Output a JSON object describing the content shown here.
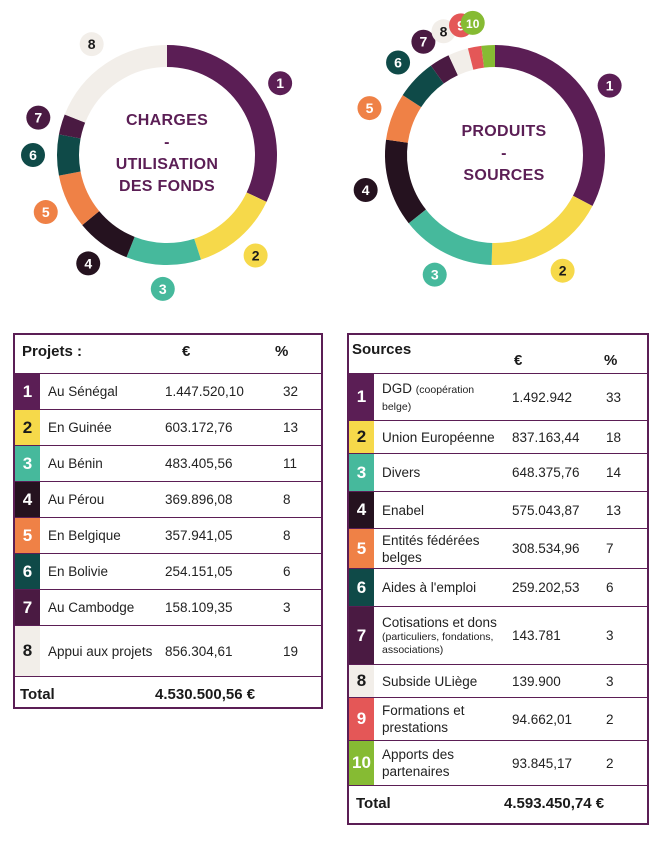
{
  "palette": {
    "1": "#5b1e55",
    "2": "#f6d94a",
    "3": "#46b99c",
    "4": "#25121f",
    "5": "#ef8146",
    "6": "#0f4a48",
    "7": "#4a1a42",
    "8": "#f2eee9",
    "9": "#e45757",
    "10": "#86bb33"
  },
  "chart_data": [
    {
      "type": "pie",
      "center_lines": [
        "CHARGES",
        "-",
        "UTILISATION",
        "DES FONDS"
      ],
      "categories": [
        "1",
        "2",
        "3",
        "4",
        "5",
        "6",
        "7",
        "8"
      ],
      "values": [
        32,
        13,
        11,
        8,
        8,
        6,
        3,
        19
      ]
    },
    {
      "type": "pie",
      "center_lines": [
        "PRODUITS",
        "-",
        "SOURCES"
      ],
      "categories": [
        "1",
        "2",
        "3",
        "4",
        "5",
        "6",
        "7",
        "8",
        "9",
        "10"
      ],
      "values": [
        33,
        18,
        14,
        13,
        7,
        6,
        3,
        3,
        2,
        2
      ]
    }
  ],
  "projects": {
    "header": "Projets :",
    "col_amount": "€",
    "col_pct": "%",
    "rows": [
      {
        "num": "1",
        "label": "Au Sénégal",
        "amount": "1.447.520,10",
        "pct": "32"
      },
      {
        "num": "2",
        "label": "En Guinée",
        "amount": "603.172,76",
        "pct": "13"
      },
      {
        "num": "3",
        "label": "Au Bénin",
        "amount": "483.405,56",
        "pct": "11"
      },
      {
        "num": "4",
        "label": "Au Pérou",
        "amount": "369.896,08",
        "pct": "8"
      },
      {
        "num": "5",
        "label": "En Belgique",
        "amount": "357.941,05",
        "pct": "8"
      },
      {
        "num": "6",
        "label": "En Bolivie",
        "amount": "254.151,05",
        "pct": "6"
      },
      {
        "num": "7",
        "label": "Au Cambodge",
        "amount": "158.109,35",
        "pct": "3"
      },
      {
        "num": "8",
        "label": "Appui aux projets",
        "amount": "856.304,61",
        "pct": "19"
      }
    ],
    "total_label": "Total",
    "total_value": "4.530.500,56 €"
  },
  "sources": {
    "header": "Sources",
    "col_amount": "€",
    "col_pct": "%",
    "rows": [
      {
        "num": "1",
        "label": "DGD",
        "sublabel": "(coopération belge)",
        "amount": "1.492.942",
        "pct": "33"
      },
      {
        "num": "2",
        "label": "Union Européenne",
        "amount": "837.163,44",
        "pct": "18"
      },
      {
        "num": "3",
        "label": "Divers",
        "amount": "648.375,76",
        "pct": "14"
      },
      {
        "num": "4",
        "label": "Enabel",
        "amount": "575.043,87",
        "pct": "13"
      },
      {
        "num": "5",
        "label": "Entités fédérées belges",
        "amount": "308.534,96",
        "pct": "7"
      },
      {
        "num": "6",
        "label": "Aides à l'emploi",
        "amount": "259.202,53",
        "pct": "6"
      },
      {
        "num": "7",
        "label": "Cotisations et dons",
        "sublabel": "(particuliers, fondations, associations)",
        "amount": "143.781",
        "pct": "3"
      },
      {
        "num": "8",
        "label": "Subside ULiège",
        "amount": "139.900",
        "pct": "3"
      },
      {
        "num": "9",
        "label": "Formations et prestations",
        "amount": "94.662,01",
        "pct": "2"
      },
      {
        "num": "10",
        "label": "Apports des partenaires",
        "amount": "93.845,17",
        "pct": "2"
      }
    ],
    "total_label": "Total",
    "total_value": "4.593.450,74 €"
  }
}
